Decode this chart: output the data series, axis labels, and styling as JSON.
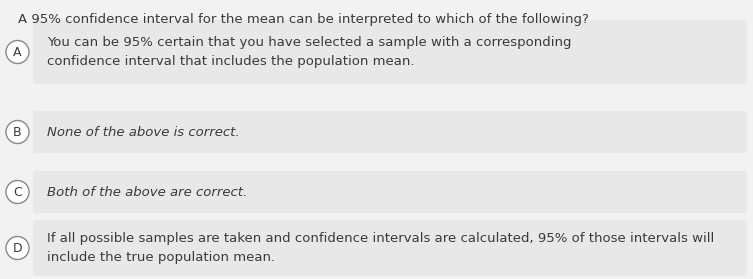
{
  "question": "A 95% confidence interval for the mean can be interpreted to which of the following?",
  "options": [
    {
      "label": "A",
      "text": "You can be 95% certain that you have selected a sample with a corresponding\nconfidence interval that includes the population mean.",
      "italic": false
    },
    {
      "label": "B",
      "text": "None of the above is correct.",
      "italic": true
    },
    {
      "label": "C",
      "text": "Both of the above are correct.",
      "italic": true
    },
    {
      "label": "D",
      "text": "If all possible samples are taken and confidence intervals are calculated, 95% of those intervals will\ninclude the true population mean.",
      "italic": false
    }
  ],
  "bg_color": "#f2f2f2",
  "option_bg_color": "#e8e8e8",
  "question_fontsize": 9.5,
  "option_fontsize": 9.5,
  "text_color": "#3a3a3a",
  "circle_color": "#888888"
}
